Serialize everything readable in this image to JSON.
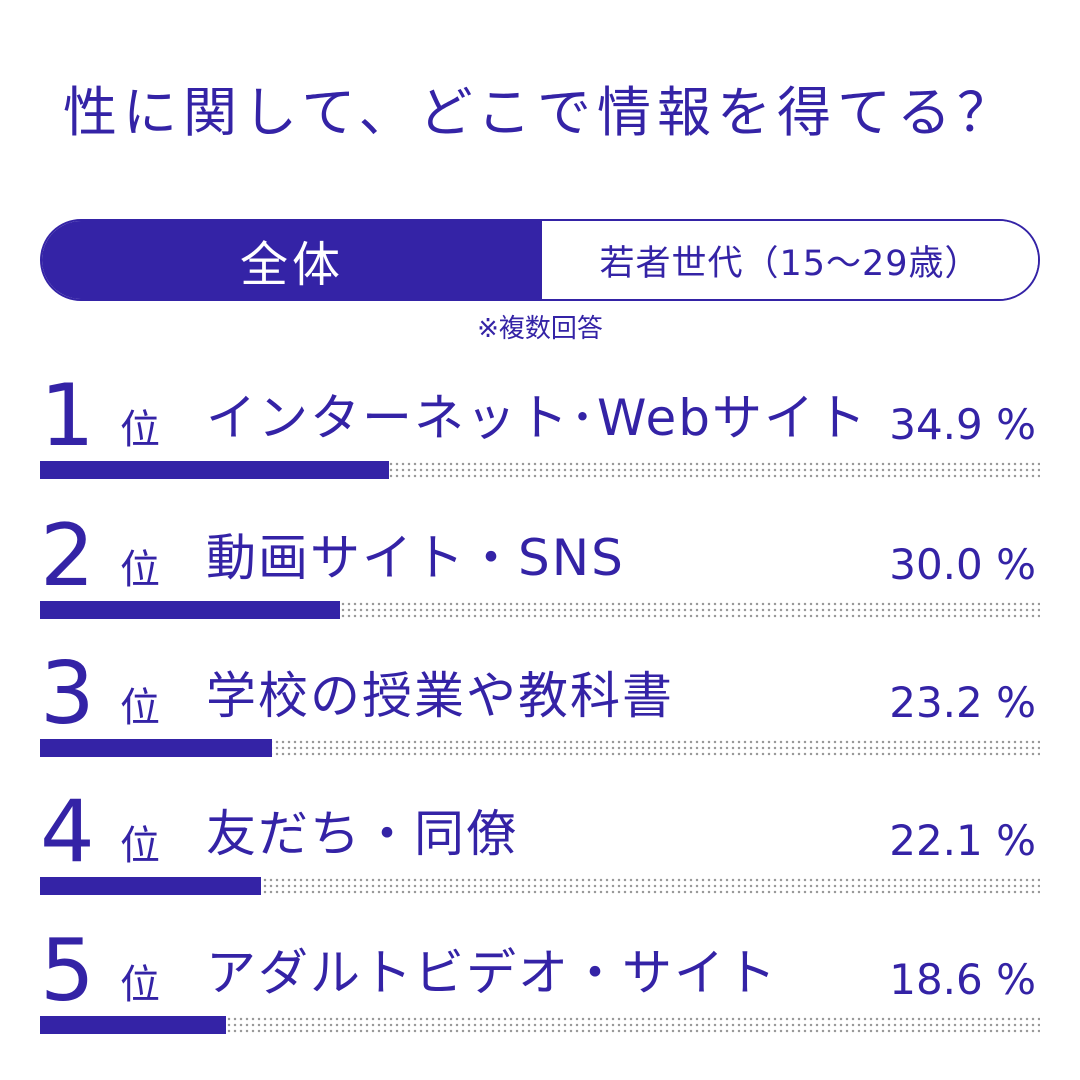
{
  "title": "性に関して、どこで情報を得てる？",
  "tabs": [
    {
      "label": "全体",
      "active": true
    },
    {
      "label": "若者世代（15〜29歳）",
      "active": false
    }
  ],
  "note": "※複数回答",
  "accent_color": "#3423a6",
  "chart_data": {
    "type": "bar",
    "orientation": "horizontal",
    "rank_suffix": "位",
    "unit": "%",
    "xlim": [
      0,
      100
    ],
    "categories": [
      "インターネット･Webサイト",
      "動画サイト・SNS",
      "学校の授業や教科書",
      "友だち・同僚",
      "アダルトビデオ・サイト"
    ],
    "ranks": [
      "1",
      "2",
      "3",
      "4",
      "5"
    ],
    "values": [
      34.9,
      30.0,
      23.2,
      22.1,
      18.6
    ],
    "value_labels": [
      "34.9 %",
      "30.0 %",
      "23.2 %",
      "22.1 %",
      "18.6 %"
    ]
  }
}
